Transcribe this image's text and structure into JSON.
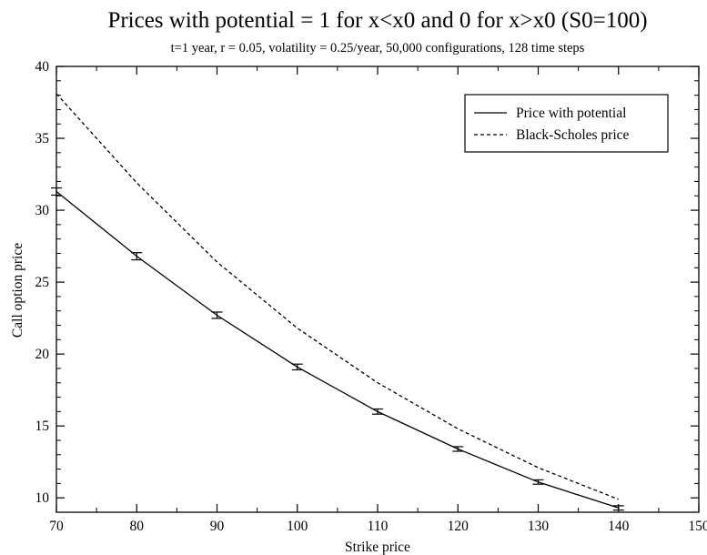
{
  "chart_data": {
    "type": "line",
    "title": "Prices with potential = 1 for x<x0 and 0 for x>x0 (S0=100)",
    "subtitle": "t=1 year, r = 0.05, volatility = 0.25/year, 50,000 configurations, 128 time steps",
    "xlabel": "Strike price",
    "ylabel": "Call option price",
    "xlim": [
      70,
      150
    ],
    "ylim": [
      9,
      40
    ],
    "xticks": [
      70,
      80,
      90,
      100,
      110,
      120,
      130,
      140,
      150
    ],
    "yticks": [
      10,
      15,
      20,
      25,
      30,
      35,
      40
    ],
    "grid": false,
    "legend_position": "top-right",
    "series": [
      {
        "name": "Price with potential",
        "style": "solid",
        "color": "#000000",
        "x": [
          70,
          80,
          90,
          100,
          110,
          120,
          130,
          140
        ],
        "y": [
          31.3,
          26.8,
          22.7,
          19.1,
          16.0,
          13.4,
          11.1,
          9.3
        ],
        "error": [
          0.25,
          0.25,
          0.22,
          0.2,
          0.18,
          0.16,
          0.15,
          0.15
        ]
      },
      {
        "name": "Black-Scholes price",
        "style": "dashed",
        "color": "#000000",
        "x": [
          70,
          80,
          90,
          100,
          110,
          120,
          130,
          140
        ],
        "y": [
          38.1,
          31.9,
          26.4,
          21.8,
          18.0,
          14.8,
          12.1,
          9.9
        ]
      }
    ]
  }
}
